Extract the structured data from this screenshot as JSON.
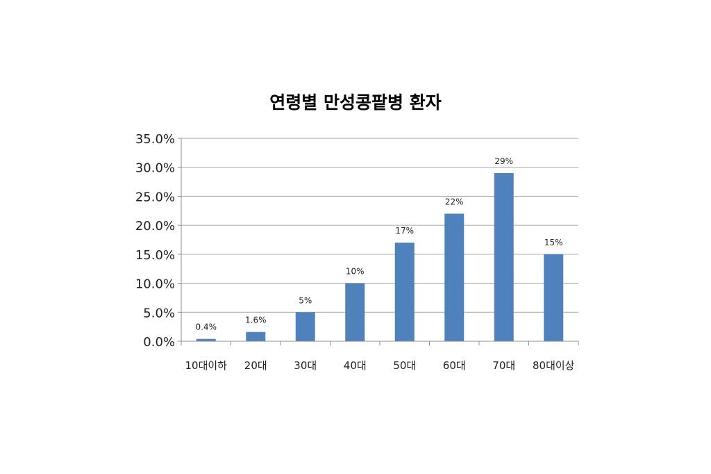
{
  "chart_data": {
    "type": "bar",
    "title": "연령별 만성콩팥병 환자",
    "xlabel": "",
    "ylabel": "",
    "categories": [
      "10대이하",
      "20대",
      "30대",
      "40대",
      "50대",
      "60대",
      "70대",
      "80대이상"
    ],
    "values": [
      0.4,
      1.6,
      5,
      10,
      17,
      22,
      29,
      15
    ],
    "data_labels": [
      "0.4%",
      "1.6%",
      "5%",
      "10%",
      "17%",
      "22%",
      "29%",
      "15%"
    ],
    "ylim": [
      0,
      35
    ],
    "yticks": [
      0,
      5,
      10,
      15,
      20,
      25,
      30,
      35
    ],
    "ytick_labels": [
      "0.0%",
      "5.0%",
      "10.0%",
      "15.0%",
      "20.0%",
      "25.0%",
      "30.0%",
      "35.0%"
    ],
    "grid": true,
    "legend": "none",
    "bar_color": "#4f81bd"
  }
}
